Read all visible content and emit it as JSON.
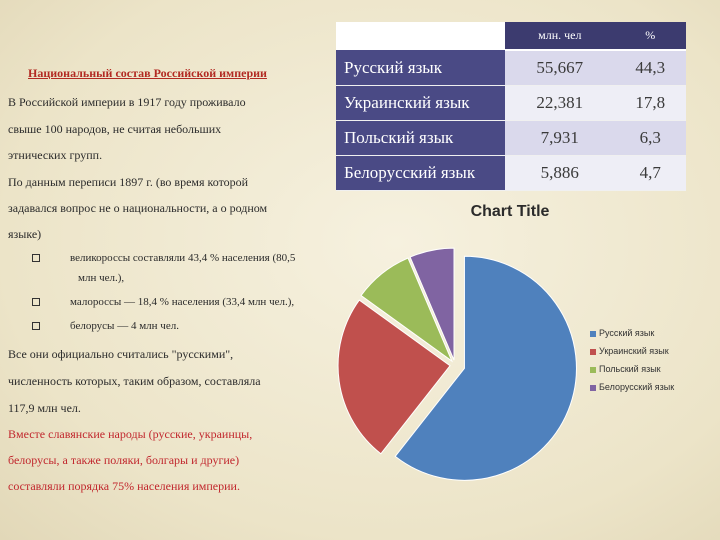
{
  "heading": "Национальный состав Российской империи",
  "text_lines": [
    "В Российской империи в 1917 году проживало",
    "свыше 100 народов, не считая небольших",
    "этнических групп.",
    "По данным переписи 1897 г. (во время которой",
    "задавался вопрос не о национальности, а о родном",
    "языке)"
  ],
  "bullets": [
    "великороссы составляли 43,4 % населения (80,5",
    "малороссы — 18,4 % населения (33,4 млн чел.),",
    "белорусы — 4 млн чел."
  ],
  "bullet_wrap": "млн чел.),",
  "summary_lines": [
    "Все они официально считались \"русскими\",",
    "численность которых, таким образом, составляла",
    "117,9 млн чел."
  ],
  "red_lines": [
    "Вместе славянские народы (русские, украинцы,",
    "белорусы, а также поляки, болгары и другие)",
    "составляли порядка 75% населения империи."
  ],
  "table": {
    "headers": [
      "",
      "млн. чел",
      "%"
    ],
    "rows": [
      {
        "label": "Русский язык",
        "million": "55,667",
        "pct": "44,3"
      },
      {
        "label": "Украинский язык",
        "million": "22,381",
        "pct": "17,8"
      },
      {
        "label": "Польский язык",
        "million": "7,931",
        "pct": "6,3"
      },
      {
        "label": "Белорусский язык",
        "million": "5,886",
        "pct": "4,7"
      }
    ]
  },
  "chart_data": {
    "type": "pie",
    "title": "Chart Title",
    "categories": [
      "Русский язык",
      "Украинский язык",
      "Польский язык",
      "Белорусский язык"
    ],
    "values": [
      55.667,
      22.381,
      7.931,
      5.886
    ],
    "colors": [
      "#4f81bd",
      "#c0504d",
      "#9bbb59",
      "#8064a2"
    ],
    "legend": "right"
  }
}
